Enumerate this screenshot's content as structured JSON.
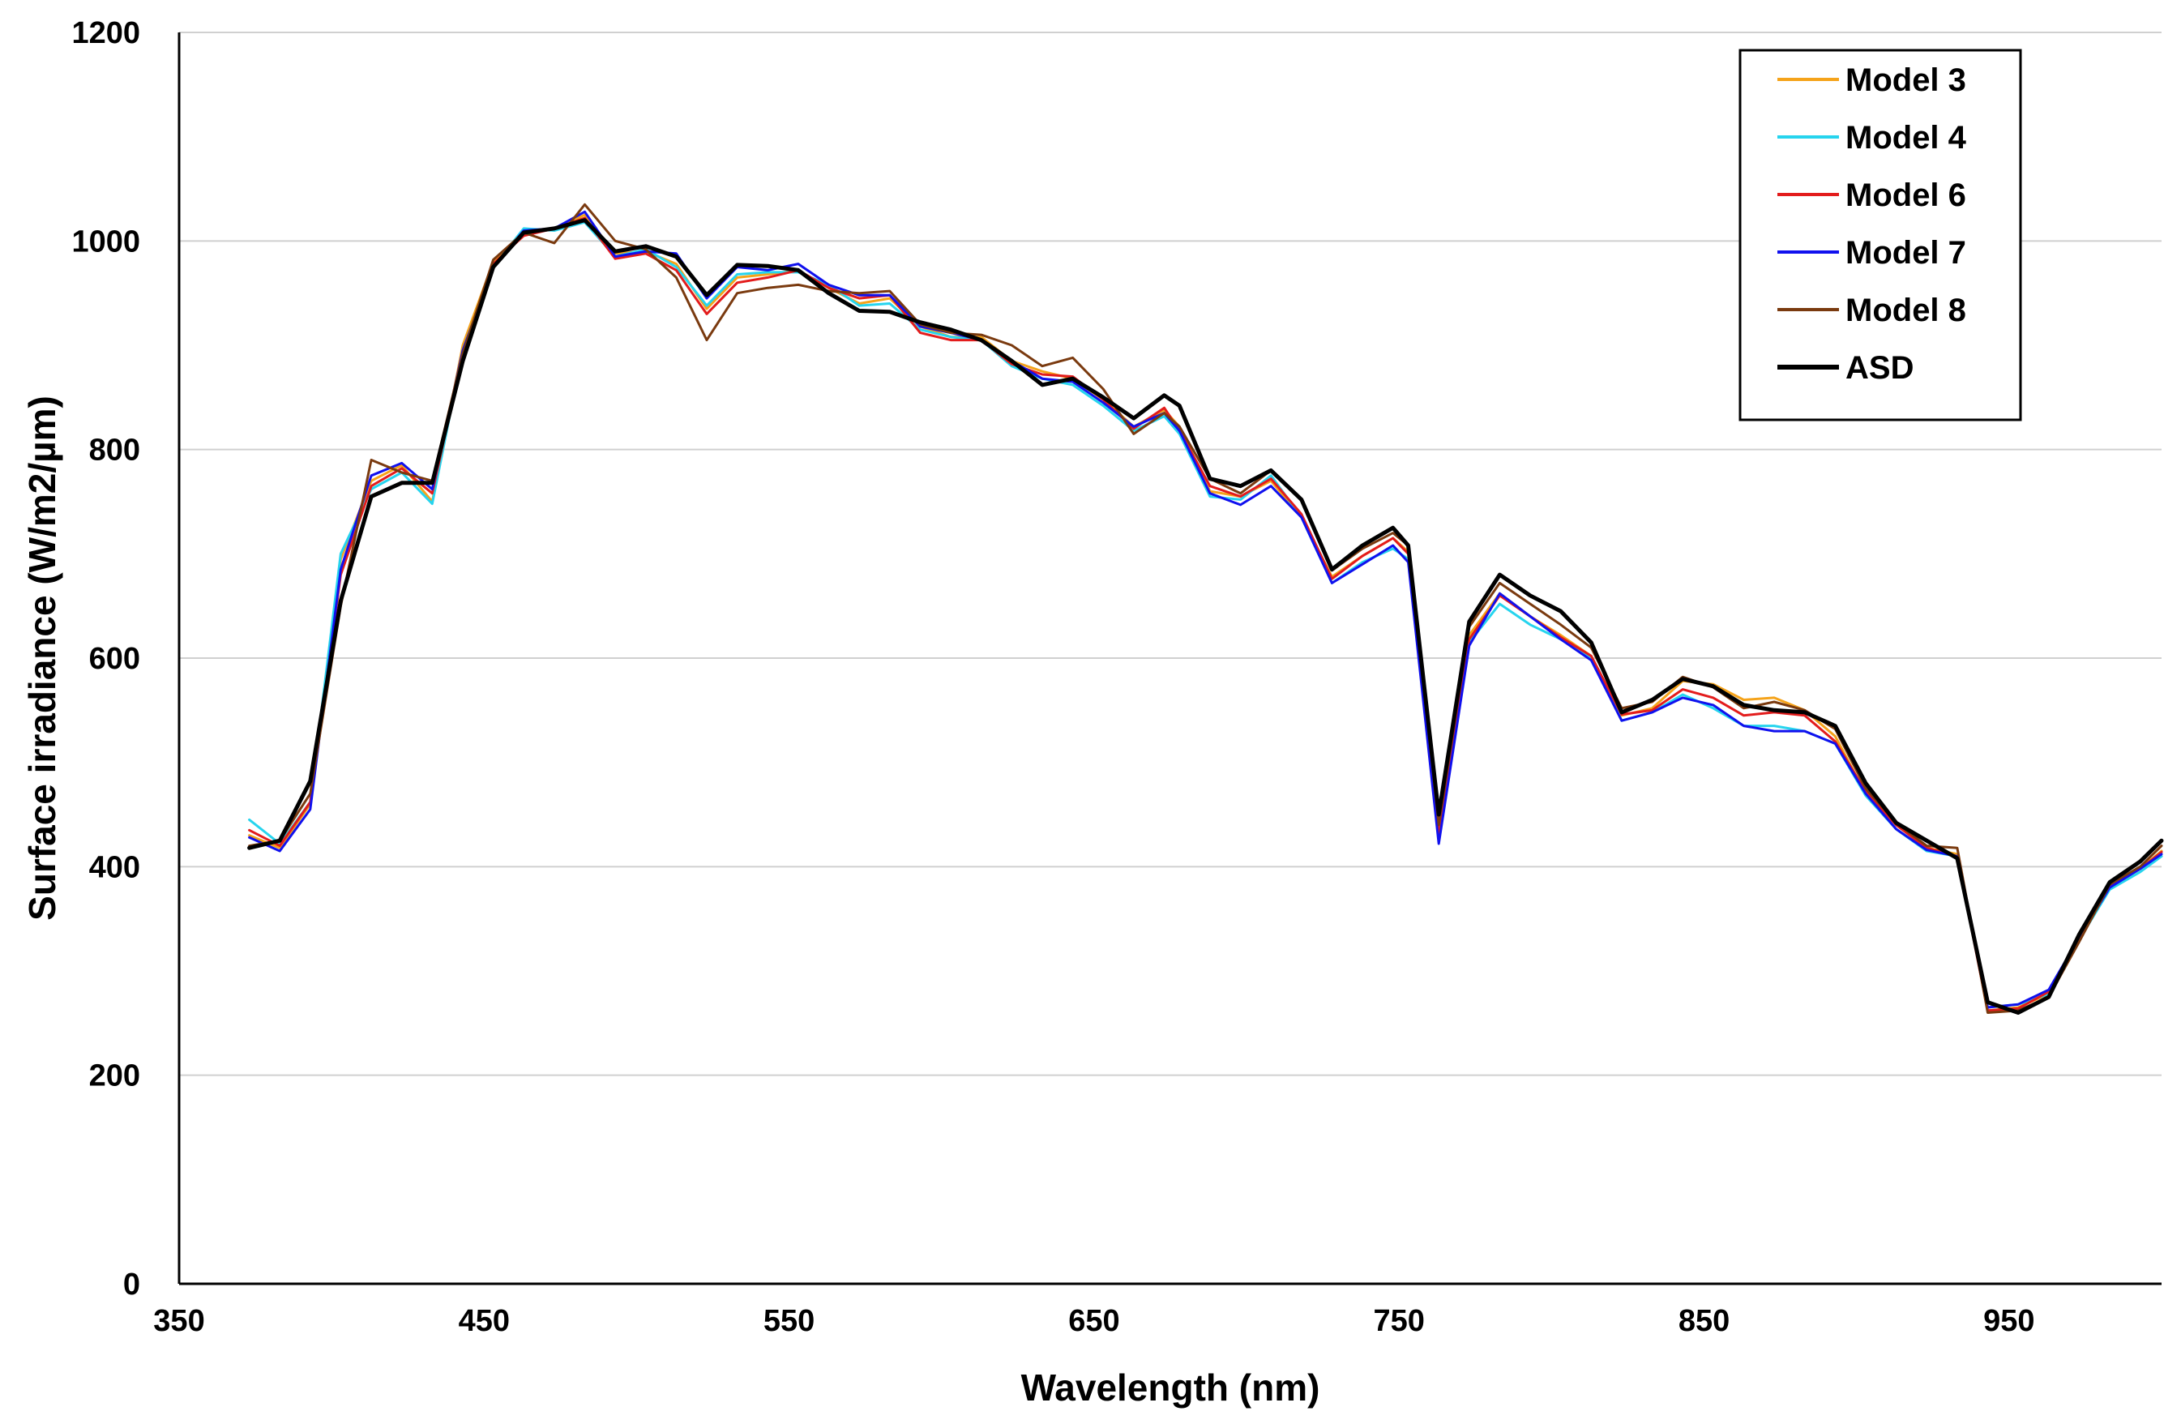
{
  "chart_data": {
    "type": "line",
    "xlabel": "Wavelength (nm)",
    "ylabel": "Surface irradiance (W/m2/µm)",
    "xlim": [
      350,
      1000
    ],
    "ylim": [
      0,
      1200
    ],
    "x_ticks": [
      350,
      450,
      550,
      650,
      750,
      850,
      950
    ],
    "y_ticks": [
      0,
      200,
      400,
      600,
      800,
      1000,
      1200
    ],
    "grid": "horizontal",
    "legend_position": "top-right",
    "x": [
      373,
      383,
      393,
      403,
      413,
      423,
      433,
      443,
      453,
      463,
      473,
      483,
      493,
      503,
      513,
      523,
      533,
      543,
      553,
      563,
      573,
      583,
      593,
      603,
      613,
      623,
      633,
      643,
      653,
      663,
      673,
      678,
      688,
      698,
      708,
      718,
      728,
      738,
      748,
      753,
      763,
      773,
      783,
      793,
      803,
      813,
      823,
      833,
      843,
      853,
      863,
      873,
      883,
      893,
      903,
      913,
      923,
      933,
      943,
      953,
      963,
      973,
      983,
      993,
      1000
    ],
    "series": [
      {
        "name": "Model 3",
        "color": "#f5a31a",
        "stroke_width": 3,
        "values": [
          430,
          418,
          460,
          695,
          770,
          785,
          750,
          900,
          980,
          1008,
          1012,
          1025,
          988,
          990,
          978,
          935,
          965,
          968,
          972,
          955,
          940,
          945,
          918,
          908,
          908,
          885,
          875,
          868,
          848,
          822,
          838,
          822,
          760,
          755,
          770,
          735,
          678,
          698,
          715,
          702,
          430,
          622,
          662,
          640,
          622,
          602,
          545,
          552,
          578,
          575,
          560,
          562,
          550,
          525,
          470,
          440,
          418,
          412,
          262,
          265,
          278,
          330,
          380,
          398,
          415
        ]
      },
      {
        "name": "Model 4",
        "color": "#26d4ee",
        "stroke_width": 3,
        "values": [
          445,
          422,
          462,
          700,
          762,
          778,
          748,
          895,
          975,
          1012,
          1010,
          1018,
          985,
          992,
          975,
          938,
          968,
          970,
          970,
          958,
          938,
          940,
          915,
          908,
          905,
          880,
          868,
          862,
          842,
          818,
          832,
          815,
          755,
          752,
          775,
          735,
          672,
          692,
          705,
          695,
          428,
          615,
          652,
          632,
          618,
          600,
          540,
          548,
          565,
          552,
          535,
          535,
          530,
          518,
          468,
          436,
          415,
          410,
          265,
          268,
          278,
          330,
          378,
          395,
          410
        ]
      },
      {
        "name": "Model 6",
        "color": "#e31c1c",
        "stroke_width": 3,
        "values": [
          435,
          420,
          462,
          680,
          765,
          782,
          758,
          892,
          978,
          1005,
          1012,
          1022,
          983,
          988,
          972,
          930,
          960,
          965,
          972,
          955,
          945,
          948,
          912,
          905,
          905,
          882,
          872,
          870,
          848,
          820,
          840,
          818,
          765,
          755,
          772,
          738,
          676,
          698,
          715,
          700,
          432,
          618,
          660,
          640,
          620,
          602,
          546,
          550,
          570,
          562,
          545,
          548,
          545,
          520,
          472,
          440,
          418,
          410,
          262,
          264,
          280,
          332,
          382,
          398,
          414
        ]
      },
      {
        "name": "Model 7",
        "color": "#1010ee",
        "stroke_width": 3,
        "values": [
          428,
          415,
          455,
          685,
          775,
          787,
          762,
          895,
          975,
          1010,
          1012,
          1028,
          985,
          990,
          988,
          945,
          975,
          972,
          978,
          958,
          948,
          948,
          918,
          912,
          905,
          885,
          868,
          865,
          845,
          822,
          835,
          818,
          758,
          747,
          765,
          735,
          672,
          690,
          708,
          692,
          422,
          612,
          662,
          640,
          618,
          598,
          540,
          548,
          562,
          555,
          535,
          530,
          530,
          518,
          470,
          436,
          416,
          410,
          265,
          268,
          282,
          332,
          380,
          398,
          412
        ]
      },
      {
        "name": "Model 8",
        "color": "#7a3a0f",
        "stroke_width": 3,
        "values": [
          420,
          425,
          470,
          650,
          790,
          778,
          770,
          892,
          982,
          1008,
          998,
          1035,
          1000,
          992,
          965,
          905,
          950,
          955,
          958,
          952,
          950,
          952,
          920,
          912,
          910,
          900,
          880,
          888,
          858,
          815,
          835,
          822,
          772,
          758,
          780,
          752,
          684,
          705,
          720,
          708,
          440,
          630,
          672,
          652,
          632,
          610,
          552,
          558,
          582,
          572,
          552,
          558,
          550,
          532,
          475,
          442,
          420,
          418,
          260,
          262,
          275,
          328,
          383,
          400,
          420
        ]
      },
      {
        "name": "ASD",
        "color": "#000000",
        "stroke_width": 5,
        "values": [
          418,
          425,
          482,
          655,
          755,
          768,
          768,
          885,
          975,
          1008,
          1012,
          1020,
          990,
          995,
          985,
          948,
          977,
          976,
          972,
          950,
          933,
          932,
          922,
          915,
          905,
          885,
          862,
          868,
          850,
          830,
          852,
          842,
          772,
          765,
          780,
          752,
          685,
          708,
          725,
          708,
          450,
          635,
          680,
          660,
          645,
          615,
          548,
          560,
          580,
          573,
          555,
          550,
          548,
          535,
          480,
          442,
          425,
          408,
          270,
          260,
          275,
          335,
          385,
          405,
          425
        ]
      }
    ]
  }
}
